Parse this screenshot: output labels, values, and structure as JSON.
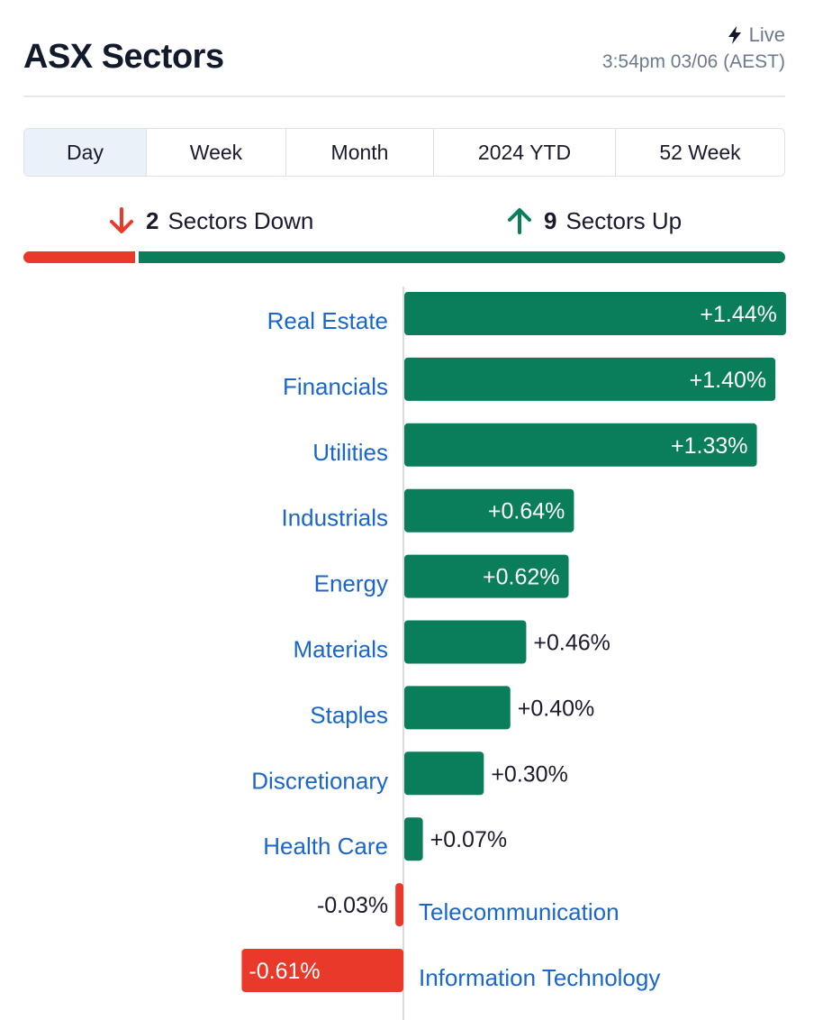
{
  "header": {
    "title": "ASX Sectors",
    "live_label": "Live",
    "timestamp": "3:54pm 03/06 (AEST)"
  },
  "tabs": [
    {
      "label": "Day",
      "active": true
    },
    {
      "label": "Week",
      "active": false
    },
    {
      "label": "Month",
      "active": false
    },
    {
      "label": "2024 YTD",
      "active": false
    },
    {
      "label": "52 Week",
      "active": false
    }
  ],
  "summary": {
    "down_count": "2",
    "down_label": "Sectors Down",
    "up_count": "9",
    "up_label": "Sectors Up"
  },
  "colors": {
    "up": "#0a7d5a",
    "down": "#e8392a",
    "label": "#1a66c9"
  },
  "icons": {
    "live": "lightning-icon",
    "down": "arrow-down-icon",
    "up": "arrow-up-icon"
  },
  "chart_data": {
    "type": "bar",
    "orientation": "horizontal",
    "categories": [
      "Real Estate",
      "Financials",
      "Utilities",
      "Industrials",
      "Energy",
      "Materials",
      "Staples",
      "Discretionary",
      "Health Care",
      "Telecommunication",
      "Information Technology"
    ],
    "values": [
      1.44,
      1.4,
      1.33,
      0.64,
      0.62,
      0.46,
      0.4,
      0.3,
      0.07,
      -0.03,
      -0.61
    ],
    "value_labels": [
      "+1.44%",
      "+1.40%",
      "+1.33%",
      "+0.64%",
      "+0.62%",
      "+0.46%",
      "+0.40%",
      "+0.30%",
      "+0.07%",
      "-0.03%",
      "-0.61%"
    ],
    "title": "",
    "xlabel": "",
    "ylabel": "",
    "grid": false
  }
}
